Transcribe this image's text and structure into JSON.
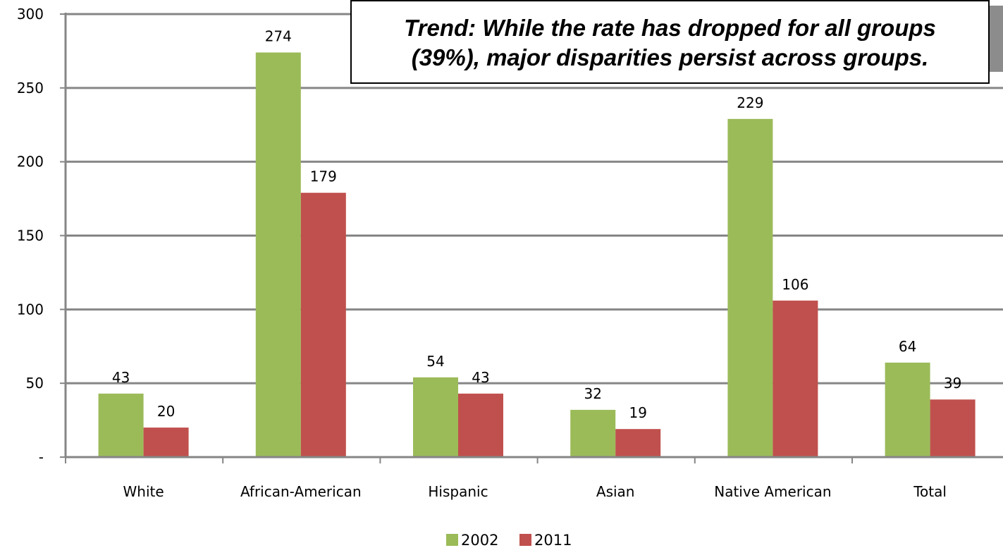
{
  "chart_data": {
    "type": "bar",
    "title": "",
    "xlabel": "",
    "ylabel": "",
    "ylim": [
      0,
      300
    ],
    "y_ticks": [
      0,
      50,
      100,
      150,
      200,
      250,
      300
    ],
    "y_tick_labels": [
      "-",
      "50",
      "100",
      "150",
      "200",
      "250",
      "300"
    ],
    "grid": true,
    "legend_position": "bottom",
    "categories": [
      "White",
      "African-American",
      "Hispanic",
      "Asian",
      "Native American",
      "Total"
    ],
    "series": [
      {
        "name": "2002",
        "color": "#9bbb59",
        "values": [
          43,
          274,
          54,
          32,
          229,
          64
        ]
      },
      {
        "name": "2011",
        "color": "#c0504d",
        "values": [
          20,
          179,
          43,
          19,
          106,
          39
        ]
      }
    ],
    "annotation": {
      "line1": "Trend:  While the rate has dropped for all groups",
      "line2": "(39%), major disparities persist across groups."
    }
  }
}
